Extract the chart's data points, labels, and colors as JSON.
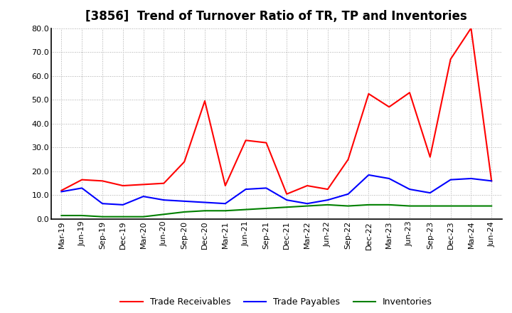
{
  "title": "[3856]  Trend of Turnover Ratio of TR, TP and Inventories",
  "x_labels": [
    "Mar-19",
    "Jun-19",
    "Sep-19",
    "Dec-19",
    "Mar-20",
    "Jun-20",
    "Sep-20",
    "Dec-20",
    "Mar-21",
    "Jun-21",
    "Sep-21",
    "Dec-21",
    "Mar-22",
    "Jun-22",
    "Sep-22",
    "Dec-22",
    "Mar-23",
    "Jun-23",
    "Sep-23",
    "Dec-23",
    "Mar-24",
    "Jun-24"
  ],
  "trade_receivables": [
    12.0,
    16.5,
    16.0,
    14.0,
    14.5,
    15.0,
    24.0,
    49.5,
    14.0,
    33.0,
    32.0,
    10.5,
    14.0,
    12.5,
    25.0,
    52.5,
    47.0,
    53.0,
    26.0,
    67.0,
    80.0,
    16.0
  ],
  "trade_payables": [
    11.5,
    13.0,
    6.5,
    6.0,
    9.5,
    8.0,
    7.5,
    7.0,
    6.5,
    12.5,
    13.0,
    8.0,
    6.5,
    8.0,
    10.5,
    18.5,
    17.0,
    12.5,
    11.0,
    16.5,
    17.0,
    16.0
  ],
  "inventories": [
    1.5,
    1.5,
    1.0,
    1.0,
    1.0,
    2.0,
    3.0,
    3.5,
    3.5,
    4.0,
    4.5,
    5.0,
    5.5,
    6.0,
    5.5,
    6.0,
    6.0,
    5.5,
    5.5,
    5.5,
    5.5,
    5.5
  ],
  "ylim": [
    0.0,
    80.0
  ],
  "yticks": [
    0.0,
    10.0,
    20.0,
    30.0,
    40.0,
    50.0,
    60.0,
    70.0,
    80.0
  ],
  "color_tr": "#FF0000",
  "color_tp": "#0000FF",
  "color_inv": "#008000",
  "legend_labels": [
    "Trade Receivables",
    "Trade Payables",
    "Inventories"
  ],
  "background_color": "#FFFFFF",
  "plot_bg_color": "#FFFFFF",
  "grid_color": "#aaaaaa",
  "title_fontsize": 12,
  "tick_fontsize": 8,
  "legend_fontsize": 9,
  "line_width": 1.5
}
